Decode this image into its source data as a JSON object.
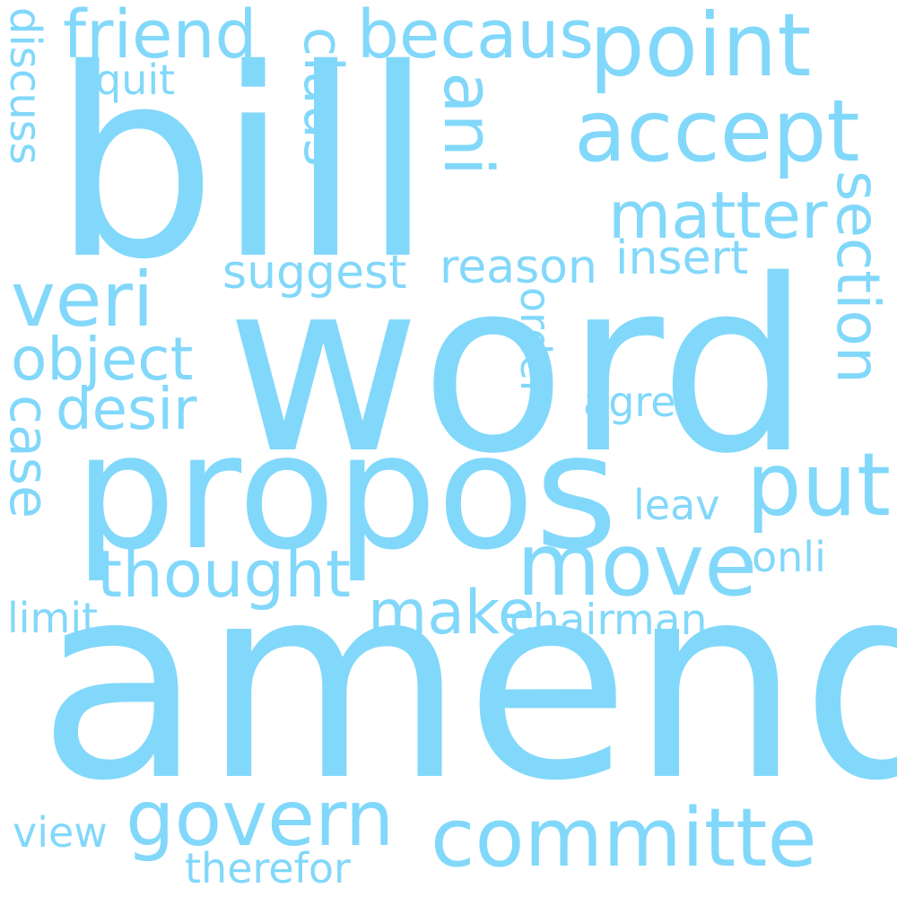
{
  "style": {
    "word_color": "#82d8fa",
    "background": "#ffffff"
  },
  "words": {
    "bill": "bill",
    "word": "word",
    "amend": "amend",
    "propos": "propos",
    "committe": "committe",
    "point": "point",
    "accept": "accept",
    "move": "move",
    "govern": "govern",
    "put": "put",
    "veri": "veri",
    "friend": "friend",
    "becaus": "becaus",
    "matter": "matter",
    "thought": "thought",
    "object": "object",
    "desir": "desir",
    "make": "make",
    "chairman": "chairman",
    "reason": "reason",
    "suggest": "suggest",
    "insert": "insert",
    "agre": "agre",
    "leav": "leav",
    "onli": "onli",
    "limit": "limit",
    "view": "view",
    "therefor": "therefor",
    "quit": "quit",
    "section": "section",
    "claus": "claus",
    "ani": "ani",
    "case": "case",
    "discuss": "discuss",
    "order": "order"
  }
}
